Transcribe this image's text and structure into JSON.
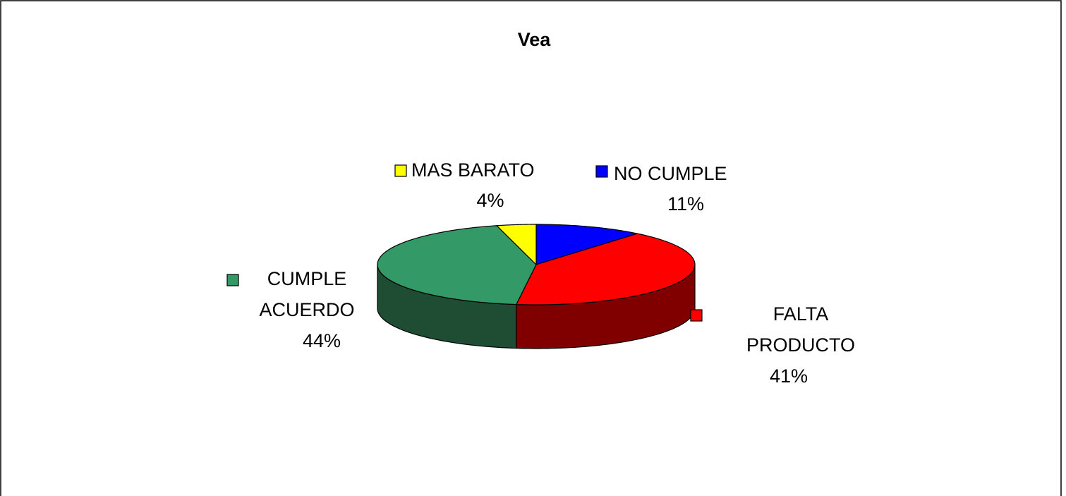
{
  "chart_data": {
    "type": "pie3d",
    "title": "Vea",
    "categories": [
      "NO CUMPLE",
      "FALTA PRODUCTO",
      "CUMPLE ACUERDO",
      "MAS BARATO"
    ],
    "values": [
      11,
      41,
      44,
      4
    ],
    "value_labels": [
      "11%",
      "41%",
      "44%",
      "4%"
    ],
    "colors": [
      "#0000ff",
      "#ff0000",
      "#339966",
      "#ffff00"
    ]
  }
}
